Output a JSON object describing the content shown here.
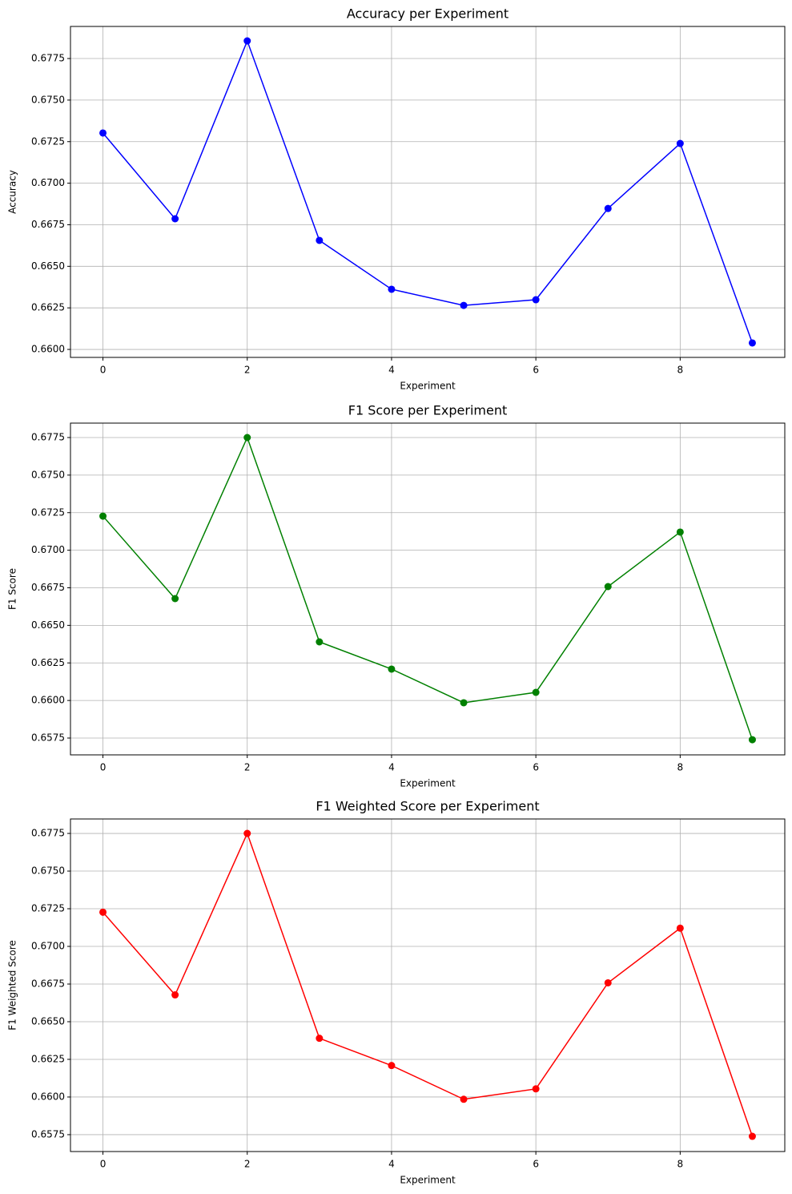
{
  "chart_data": [
    {
      "type": "line",
      "title": "Accuracy per Experiment",
      "x_label": "Experiment",
      "y_label": "Accuracy",
      "x": [
        0,
        1,
        2,
        3,
        4,
        5,
        6,
        7,
        8,
        9
      ],
      "values": [
        0.67302,
        0.66786,
        0.67856,
        0.66656,
        0.66362,
        0.66265,
        0.66299,
        0.66848,
        0.67239,
        0.66039
      ],
      "color": "#0000ff",
      "markers": true,
      "grid": true,
      "xlim": [
        -0.45,
        9.45
      ],
      "xticks": [
        0,
        2,
        4,
        6,
        8
      ],
      "ylim": [
        0.65952,
        0.67943
      ],
      "yticks": [
        {
          "value": 0.66,
          "label": "0.6600"
        },
        {
          "value": 0.6625,
          "label": "0.6625"
        },
        {
          "value": 0.665,
          "label": "0.6650"
        },
        {
          "value": 0.6675,
          "label": "0.6675"
        },
        {
          "value": 0.67,
          "label": "0.6700"
        },
        {
          "value": 0.6725,
          "label": "0.6725"
        },
        {
          "value": 0.675,
          "label": "0.6750"
        },
        {
          "value": 0.6775,
          "label": "0.6775"
        }
      ]
    },
    {
      "type": "line",
      "title": "F1 Score per Experiment",
      "x_label": "Experiment",
      "y_label": "F1 Score",
      "x": [
        0,
        1,
        2,
        3,
        4,
        5,
        6,
        7,
        8,
        9
      ],
      "values": [
        0.67227,
        0.66678,
        0.6775,
        0.6639,
        0.66209,
        0.65985,
        0.66054,
        0.66758,
        0.67121,
        0.65739
      ],
      "color": "#008000",
      "markers": true,
      "grid": true,
      "xlim": [
        -0.45,
        9.45
      ],
      "xticks": [
        0,
        2,
        4,
        6,
        8
      ],
      "ylim": [
        0.65638,
        0.67846
      ],
      "yticks": [
        {
          "value": 0.6575,
          "label": "0.6575"
        },
        {
          "value": 0.66,
          "label": "0.6600"
        },
        {
          "value": 0.6625,
          "label": "0.6625"
        },
        {
          "value": 0.665,
          "label": "0.6650"
        },
        {
          "value": 0.6675,
          "label": "0.6675"
        },
        {
          "value": 0.67,
          "label": "0.6700"
        },
        {
          "value": 0.6725,
          "label": "0.6725"
        },
        {
          "value": 0.675,
          "label": "0.6750"
        },
        {
          "value": 0.6775,
          "label": "0.6775"
        }
      ]
    },
    {
      "type": "line",
      "title": "F1 Weighted Score per Experiment",
      "x_label": "Experiment",
      "y_label": "F1 Weighted Score",
      "x": [
        0,
        1,
        2,
        3,
        4,
        5,
        6,
        7,
        8,
        9
      ],
      "values": [
        0.67227,
        0.66678,
        0.6775,
        0.6639,
        0.66209,
        0.65985,
        0.66054,
        0.66758,
        0.67121,
        0.65739
      ],
      "color": "#ff0000",
      "markers": true,
      "grid": true,
      "xlim": [
        -0.45,
        9.45
      ],
      "xticks": [
        0,
        2,
        4,
        6,
        8
      ],
      "ylim": [
        0.65638,
        0.67846
      ],
      "yticks": [
        {
          "value": 0.6575,
          "label": "0.6575"
        },
        {
          "value": 0.66,
          "label": "0.6600"
        },
        {
          "value": 0.6625,
          "label": "0.6625"
        },
        {
          "value": 0.665,
          "label": "0.6650"
        },
        {
          "value": 0.6675,
          "label": "0.6675"
        },
        {
          "value": 0.67,
          "label": "0.6700"
        },
        {
          "value": 0.6725,
          "label": "0.6725"
        },
        {
          "value": 0.675,
          "label": "0.6750"
        },
        {
          "value": 0.6775,
          "label": "0.6775"
        }
      ]
    }
  ]
}
